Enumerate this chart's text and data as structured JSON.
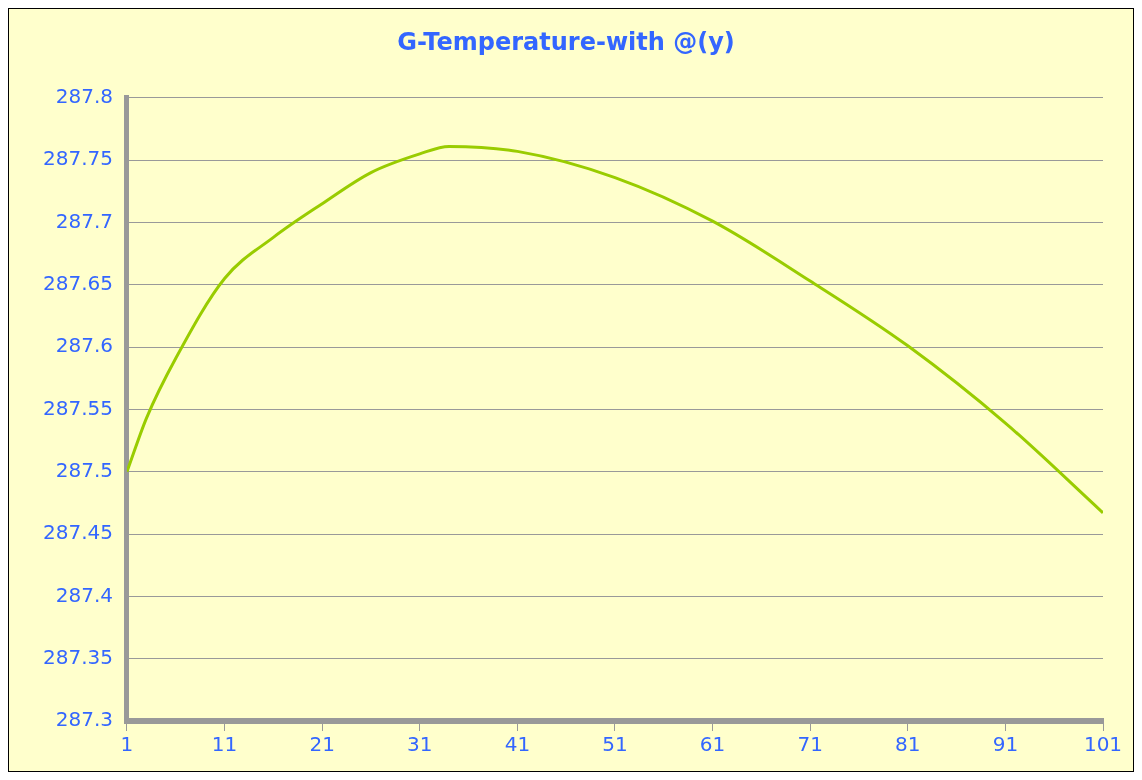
{
  "chart_data": {
    "type": "line",
    "title": "G-Temperature-with @(y)",
    "series": [
      {
        "color": "#99cc00",
        "x": [
          1,
          3,
          6,
          11,
          16,
          21,
          26,
          31,
          34,
          41,
          51,
          61,
          71,
          81,
          91,
          101
        ],
        "values": [
          287.5,
          287.543,
          287.591,
          287.655,
          287.688,
          287.715,
          287.74,
          287.755,
          287.761,
          287.757,
          287.736,
          287.701,
          287.653,
          287.601,
          287.539,
          287.467
        ]
      }
    ],
    "xlim": [
      1,
      101
    ],
    "xticks": [
      1,
      11,
      21,
      31,
      41,
      51,
      61,
      71,
      81,
      91,
      101
    ],
    "ylim": [
      287.3,
      287.8
    ],
    "yticks": [
      287.3,
      287.35,
      287.4,
      287.45,
      287.5,
      287.55,
      287.6,
      287.65,
      287.7,
      287.75,
      287.8
    ],
    "grid": "y",
    "legend": false,
    "marker": "none",
    "line_style": "solid"
  }
}
